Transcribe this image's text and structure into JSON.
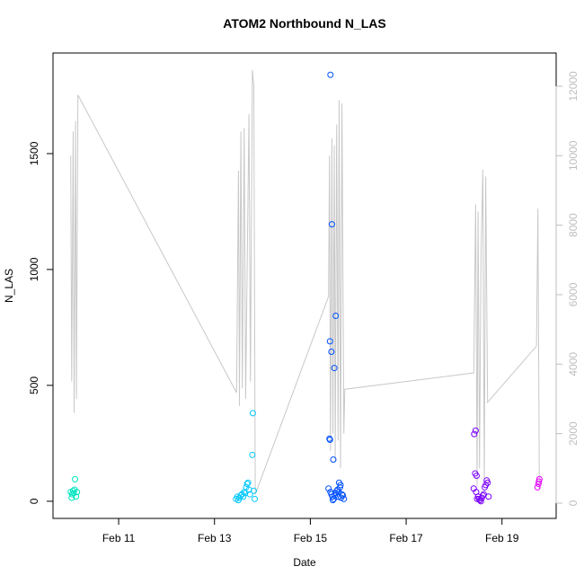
{
  "chart_data": {
    "type": "scatter",
    "title": "ATOM2 Northbound N_LAS",
    "x_label": "Date",
    "y_label": "N_LAS",
    "xlim": [
      9.63,
      20.13
    ],
    "xticks": [
      {
        "value": 11,
        "label": "Feb 11"
      },
      {
        "value": 13,
        "label": "Feb 13"
      },
      {
        "value": 15,
        "label": "Feb 15"
      },
      {
        "value": 17,
        "label": "Feb 17"
      },
      {
        "value": 19,
        "label": "Feb 19"
      }
    ],
    "ylim": [
      -74,
      1934
    ],
    "yticks": [
      0,
      500,
      1000,
      1500
    ],
    "y2lim": [
      -440,
      12956
    ],
    "y2ticks": [
      0,
      2000,
      4000,
      6000,
      8000,
      10000,
      12000
    ],
    "y2_color": "#bebebe",
    "series": [
      {
        "color": "#00e5c0",
        "x": [
          10.0,
          10.02,
          10.03,
          10.05,
          10.06,
          10.08,
          10.09,
          10.11,
          10.13
        ],
        "values": [
          40,
          15,
          30,
          45,
          35,
          50,
          95,
          20,
          40
        ]
      },
      {
        "color": "#00c8ff",
        "x": [
          13.45,
          13.48,
          13.5,
          13.52,
          13.55,
          13.57,
          13.6,
          13.62,
          13.64,
          13.66,
          13.68,
          13.7,
          13.72,
          13.74,
          13.8,
          13.79,
          13.82,
          13.84
        ],
        "values": [
          10,
          20,
          5,
          15,
          25,
          30,
          20,
          40,
          35,
          60,
          75,
          80,
          50,
          30,
          380,
          200,
          45,
          10
        ]
      },
      {
        "color": "#0050ff",
        "x": [
          15.42,
          15.45,
          15.53,
          15.41,
          15.44,
          15.5,
          15.4,
          15.41,
          15.48,
          15.38,
          15.42,
          15.44,
          15.46,
          15.49,
          15.51,
          15.53,
          15.6,
          15.62,
          15.55,
          15.58,
          15.64,
          15.66,
          15.57,
          15.63,
          15.68,
          15.7,
          15.47,
          15.59
        ],
        "values": [
          1840,
          1195,
          800,
          690,
          645,
          575,
          270,
          265,
          180,
          55,
          40,
          30,
          20,
          10,
          25,
          35,
          80,
          60,
          45,
          20,
          15,
          30,
          50,
          70,
          25,
          10,
          5,
          40
        ]
      },
      {
        "color": "#7a00ff",
        "x": [
          18.42,
          18.45,
          18.44,
          18.47,
          18.41,
          18.46,
          18.5,
          18.52,
          18.54,
          18.56,
          18.58,
          18.6,
          18.62,
          18.66,
          18.68,
          18.7,
          18.64,
          18.72,
          18.48
        ],
        "values": [
          290,
          305,
          120,
          110,
          55,
          40,
          20,
          10,
          5,
          0,
          15,
          25,
          30,
          70,
          90,
          80,
          60,
          20,
          10
        ]
      },
      {
        "color": "#e600ff",
        "x": [
          19.74,
          19.76,
          19.78,
          19.77
        ],
        "values": [
          60,
          75,
          95,
          85
        ]
      },
      {
        "style": "line",
        "axis": "y2",
        "color": "#c8c8c8",
        "x": [
          10.0,
          10.02,
          10.05,
          10.07,
          10.1,
          10.12,
          10.15,
          13.46,
          13.5,
          13.52,
          13.55,
          13.58,
          13.62,
          13.65,
          13.72,
          13.75,
          13.79,
          13.82,
          13.85,
          15.38,
          15.4,
          15.42,
          15.45,
          15.47,
          15.5,
          15.52,
          15.55,
          15.58,
          15.6,
          15.63,
          15.66,
          15.7,
          15.72,
          18.41,
          18.45,
          18.48,
          18.5,
          18.53,
          18.56,
          18.6,
          18.63,
          18.66,
          18.7,
          19.72,
          19.75,
          19.78
        ],
        "values": [
          10000,
          3500,
          10700,
          2600,
          11000,
          3000,
          11750,
          3180,
          9570,
          2800,
          10700,
          3300,
          10800,
          3000,
          11200,
          3500,
          12465,
          12000,
          250,
          5950,
          10000,
          1500,
          10500,
          2000,
          10300,
          1200,
          10900,
          1800,
          11600,
          1000,
          11500,
          2000,
          3280,
          3750,
          8600,
          500,
          8400,
          1000,
          7000,
          9600,
          600,
          9400,
          2900,
          4520,
          8480,
          400
        ]
      }
    ]
  }
}
